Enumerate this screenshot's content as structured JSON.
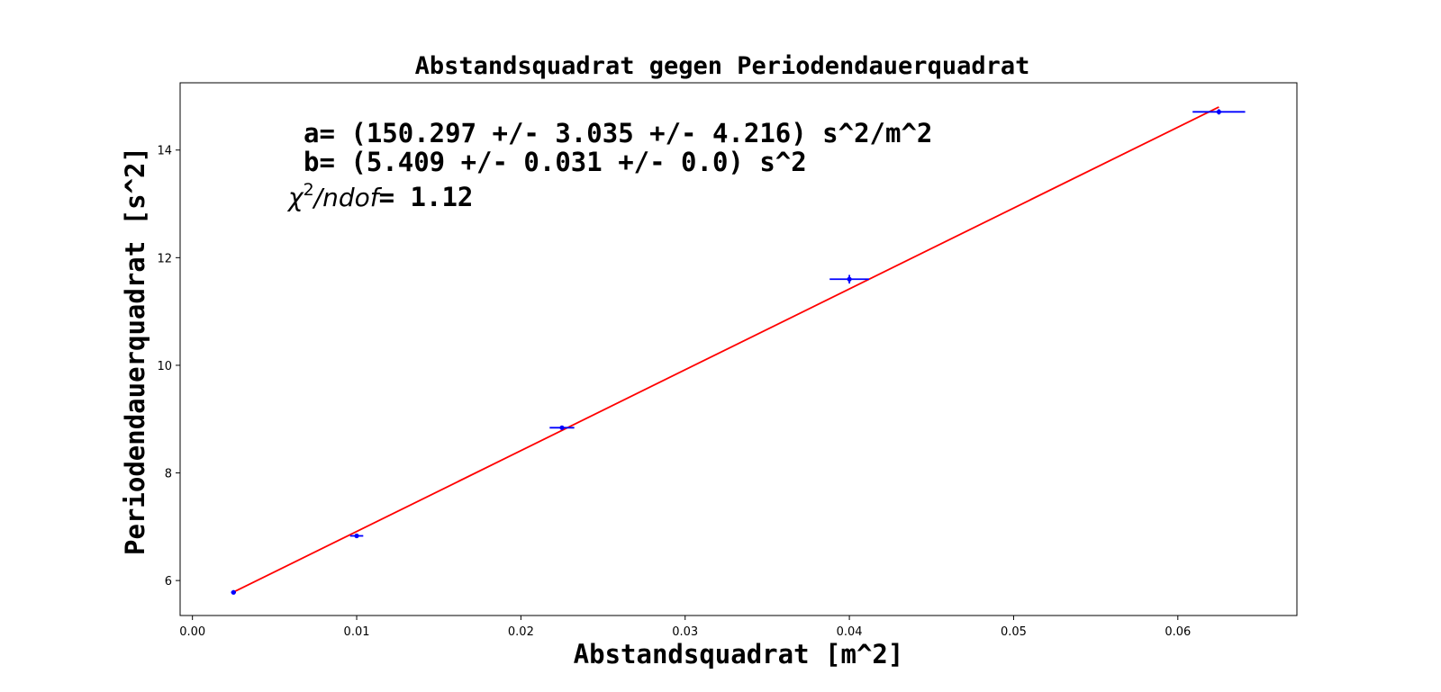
{
  "chart_data": {
    "type": "scatter",
    "title": "Abstandsquadrat gegen Periodendauerquadrat",
    "xlabel": "Abstandsquadrat [m^2]",
    "ylabel": "Periodendauerquadrat [s^2]",
    "xlim": [
      -0.00075,
      0.06725
    ],
    "ylim": [
      5.35,
      15.25
    ],
    "xticks": [
      0.0,
      0.01,
      0.02,
      0.03,
      0.04,
      0.05,
      0.06
    ],
    "xtick_labels": [
      "0.00",
      "0.01",
      "0.02",
      "0.03",
      "0.04",
      "0.05",
      "0.06"
    ],
    "yticks": [
      6,
      8,
      10,
      12,
      14
    ],
    "ytick_labels": [
      "6",
      "8",
      "10",
      "12",
      "14"
    ],
    "grid": false,
    "series": [
      {
        "type": "errorbar",
        "color": "#0000ff",
        "points": [
          {
            "x": 0.0025,
            "y": 5.78,
            "xerr": 0.00015,
            "yerr": 0.03
          },
          {
            "x": 0.01,
            "y": 6.83,
            "xerr": 0.0004,
            "yerr": 0.03
          },
          {
            "x": 0.0225,
            "y": 8.84,
            "xerr": 0.00075,
            "yerr": 0.03
          },
          {
            "x": 0.04,
            "y": 11.6,
            "xerr": 0.0012,
            "yerr": 0.08
          },
          {
            "x": 0.0625,
            "y": 14.71,
            "xerr": 0.0016,
            "yerr": 0.05
          }
        ]
      },
      {
        "type": "line",
        "color": "#ff0000",
        "x": [
          0.0025,
          0.0625
        ],
        "y": [
          5.785,
          14.8
        ]
      }
    ],
    "annotations": {
      "line_a": "a= (150.297 +/- 3.035 +/- 4.216) s^2/m^2",
      "line_b": "b= (5.409 +/- 0.031 +/- 0.0) s^2",
      "chi_symbol": "χ",
      "chi_exponent": "2",
      "chi_denominator": "/ndof",
      "chi_value": "= 1.12"
    }
  }
}
